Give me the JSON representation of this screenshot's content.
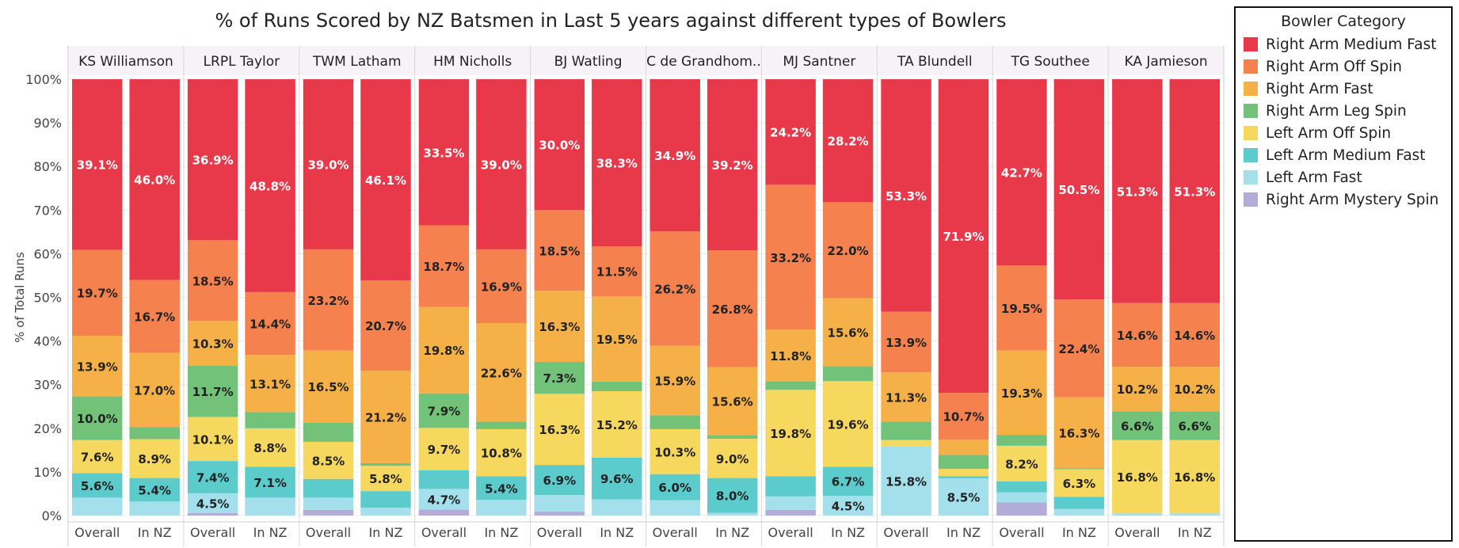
{
  "chart_data": {
    "type": "bar",
    "stacked": true,
    "title": "% of Runs Scored by NZ Batsmen in Last 5 years against different types of Bowlers",
    "ylabel": "% of Total Runs",
    "ylim": [
      0,
      100
    ],
    "y_ticks": [
      "0%",
      "10%",
      "20%",
      "30%",
      "40%",
      "50%",
      "60%",
      "70%",
      "80%",
      "90%",
      "100%"
    ],
    "legend_title": "Bowler Category",
    "legend_position": "right",
    "series": [
      {
        "name": "Right Arm Medium Fast",
        "color": "#e8394a"
      },
      {
        "name": "Right Arm Off Spin",
        "color": "#f5824e"
      },
      {
        "name": "Right Arm Fast",
        "color": "#f5b147"
      },
      {
        "name": "Right Arm Leg Spin",
        "color": "#72c27a"
      },
      {
        "name": "Left Arm Off Spin",
        "color": "#f7d85f"
      },
      {
        "name": "Left Arm Medium Fast",
        "color": "#5ccbcb"
      },
      {
        "name": "Left Arm Fast",
        "color": "#a4e0ec"
      },
      {
        "name": "Right Arm Mystery Spin",
        "color": "#b1acd8"
      }
    ],
    "batsmen": [
      {
        "name": "KS Williamson",
        "bars": [
          {
            "label": "Overall",
            "values": [
              39.1,
              19.7,
              13.9,
              10.0,
              7.6,
              5.6,
              4.1,
              0
            ],
            "labels": [
              "39.1%",
              "19.7%",
              "13.9%",
              "10.0%",
              "7.6%",
              "5.6%",
              "",
              ""
            ]
          },
          {
            "label": "In NZ",
            "values": [
              46.0,
              16.7,
              17.0,
              2.8,
              8.9,
              5.4,
              3.2,
              0
            ],
            "labels": [
              "46.0%",
              "16.7%",
              "17.0%",
              "",
              "8.9%",
              "5.4%",
              "",
              ""
            ]
          }
        ]
      },
      {
        "name": "LRPL Taylor",
        "bars": [
          {
            "label": "Overall",
            "values": [
              36.9,
              18.5,
              10.3,
              11.7,
              10.1,
              7.4,
              4.5,
              0.6
            ],
            "labels": [
              "36.9%",
              "18.5%",
              "10.3%",
              "11.7%",
              "10.1%",
              "7.4%",
              "4.5%",
              ""
            ]
          },
          {
            "label": "In NZ",
            "values": [
              48.8,
              14.4,
              13.1,
              3.7,
              8.8,
              7.1,
              4.1,
              0
            ],
            "labels": [
              "48.8%",
              "14.4%",
              "13.1%",
              "",
              "8.8%",
              "7.1%",
              "",
              ""
            ]
          }
        ]
      },
      {
        "name": "TWM Latham",
        "bars": [
          {
            "label": "Overall",
            "values": [
              39.0,
              23.2,
              16.5,
              4.4,
              8.5,
              4.3,
              2.8,
              1.3
            ],
            "labels": [
              "39.0%",
              "23.2%",
              "16.5%",
              "",
              "8.5%",
              "",
              "",
              ""
            ]
          },
          {
            "label": "In NZ",
            "values": [
              46.1,
              20.7,
              21.2,
              0.6,
              5.8,
              3.8,
              1.8,
              0
            ],
            "labels": [
              "46.1%",
              "20.7%",
              "21.2%",
              "",
              "5.8%",
              "",
              "",
              ""
            ]
          }
        ]
      },
      {
        "name": "HM Nicholls",
        "bars": [
          {
            "label": "Overall",
            "values": [
              33.5,
              18.7,
              19.8,
              7.9,
              9.7,
              4.3,
              4.7,
              1.4
            ],
            "labels": [
              "33.5%",
              "18.7%",
              "19.8%",
              "7.9%",
              "9.7%",
              "",
              "4.7%",
              ""
            ]
          },
          {
            "label": "In NZ",
            "values": [
              39.0,
              16.9,
              22.6,
              1.7,
              10.8,
              5.4,
              3.6,
              0
            ],
            "labels": [
              "39.0%",
              "16.9%",
              "22.6%",
              "",
              "10.8%",
              "5.4%",
              "",
              ""
            ]
          }
        ]
      },
      {
        "name": "BJ Watling",
        "bars": [
          {
            "label": "Overall",
            "values": [
              30.0,
              18.5,
              16.3,
              7.3,
              16.3,
              6.9,
              3.8,
              0.9
            ],
            "labels": [
              "30.0%",
              "18.5%",
              "16.3%",
              "7.3%",
              "16.3%",
              "6.9%",
              "",
              ""
            ]
          },
          {
            "label": "In NZ",
            "values": [
              38.3,
              11.5,
              19.5,
              2.2,
              15.2,
              9.6,
              3.7,
              0
            ],
            "labels": [
              "38.3%",
              "11.5%",
              "19.5%",
              "",
              "15.2%",
              "9.6%",
              "",
              ""
            ]
          }
        ]
      },
      {
        "name": "C de Grandhom..",
        "bars": [
          {
            "label": "Overall",
            "values": [
              34.9,
              26.2,
              15.9,
              3.2,
              10.3,
              6.0,
              3.5,
              0
            ],
            "labels": [
              "34.9%",
              "26.2%",
              "15.9%",
              "",
              "10.3%",
              "6.0%",
              "",
              ""
            ]
          },
          {
            "label": "In NZ",
            "values": [
              39.2,
              26.8,
              15.6,
              0.8,
              9.0,
              8.0,
              0.6,
              0
            ],
            "labels": [
              "39.2%",
              "26.8%",
              "15.6%",
              "",
              "9.0%",
              "8.0%",
              "",
              ""
            ]
          }
        ]
      },
      {
        "name": "MJ Santner",
        "bars": [
          {
            "label": "Overall",
            "values": [
              24.2,
              33.2,
              11.8,
              2.0,
              19.8,
              4.6,
              3.1,
              1.3
            ],
            "labels": [
              "24.2%",
              "33.2%",
              "11.8%",
              "",
              "19.8%",
              "",
              "",
              ""
            ]
          },
          {
            "label": "In NZ",
            "values": [
              28.2,
              22.0,
              15.6,
              3.4,
              19.6,
              6.7,
              4.5,
              0
            ],
            "labels": [
              "28.2%",
              "22.0%",
              "15.6%",
              "",
              "19.6%",
              "6.7%",
              "4.5%",
              ""
            ]
          }
        ]
      },
      {
        "name": "TA Blundell",
        "bars": [
          {
            "label": "Overall",
            "values": [
              53.3,
              13.9,
              11.3,
              4.2,
              1.5,
              0,
              15.8,
              0
            ],
            "labels": [
              "53.3%",
              "13.9%",
              "11.3%",
              "",
              "",
              "",
              "15.8%",
              ""
            ]
          },
          {
            "label": "In NZ",
            "values": [
              71.9,
              10.7,
              3.5,
              3.2,
              1.7,
              0.5,
              8.5,
              0
            ],
            "labels": [
              "71.9%",
              "10.7%",
              "",
              "",
              "",
              "",
              "8.5%",
              ""
            ]
          }
        ]
      },
      {
        "name": "TG Southee",
        "bars": [
          {
            "label": "Overall",
            "values": [
              42.7,
              19.5,
              19.3,
              2.5,
              8.2,
              2.5,
              2.3,
              3.0
            ],
            "labels": [
              "42.7%",
              "19.5%",
              "19.3%",
              "",
              "8.2%",
              "",
              "",
              ""
            ]
          },
          {
            "label": "In NZ",
            "values": [
              50.5,
              22.4,
              16.3,
              0.2,
              6.3,
              2.8,
              1.5,
              0
            ],
            "labels": [
              "50.5%",
              "22.4%",
              "16.3%",
              "",
              "6.3%",
              "",
              "",
              ""
            ]
          }
        ]
      },
      {
        "name": "KA Jamieson",
        "bars": [
          {
            "label": "Overall",
            "values": [
              51.3,
              14.6,
              10.2,
              6.6,
              16.8,
              0,
              0.5,
              0
            ],
            "labels": [
              "51.3%",
              "14.6%",
              "10.2%",
              "6.6%",
              "16.8%",
              "",
              "",
              ""
            ]
          },
          {
            "label": "In NZ",
            "values": [
              51.3,
              14.6,
              10.2,
              6.6,
              16.8,
              0,
              0.5,
              0
            ],
            "labels": [
              "51.3%",
              "14.6%",
              "10.2%",
              "6.6%",
              "16.8%",
              "",
              "",
              ""
            ]
          }
        ]
      }
    ]
  }
}
